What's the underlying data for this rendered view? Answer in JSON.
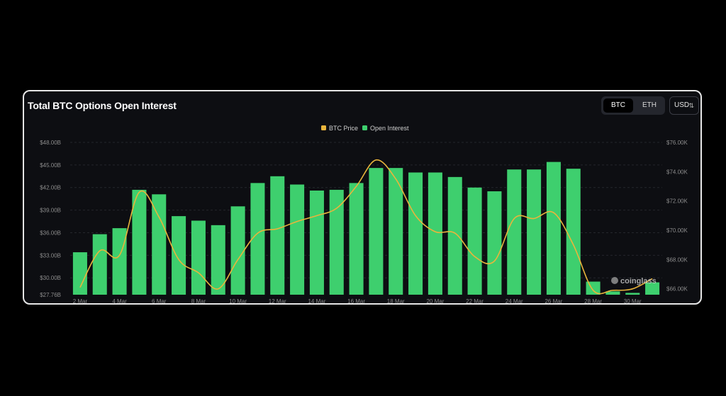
{
  "header": {
    "title": "Total BTC Options Open Interest"
  },
  "toggle": {
    "options": [
      "BTC",
      "ETH"
    ],
    "selected": "BTC"
  },
  "currency": {
    "value": "USD",
    "icon": "chevron-updown-icon"
  },
  "watermark": {
    "text": "coinglass",
    "icon": "coinglass-logo-icon"
  },
  "chart_data": {
    "type": "bar",
    "title": "Total BTC Options Open Interest",
    "legend": {
      "placement": "top-center",
      "entries": [
        "BTC Price",
        "Open Interest"
      ]
    },
    "colors": {
      "bar": "#3ecf6e",
      "line": "#e9b53c",
      "text": "#8c8c8c",
      "grid": "#24262c"
    },
    "x_ticks": [
      "2 Mar",
      "4 Mar",
      "6 Mar",
      "8 Mar",
      "10 Mar",
      "12 Mar",
      "14 Mar",
      "16 Mar",
      "18 Mar",
      "20 Mar",
      "22 Mar",
      "24 Mar",
      "26 Mar",
      "28 Mar",
      "30 Mar"
    ],
    "y_left": {
      "min": 27.76,
      "max": 48,
      "ticks": [
        "$48.00B",
        "$45.00B",
        "$42.00B",
        "$39.00B",
        "$36.00B",
        "$33.00B",
        "$30.00B",
        "$27.76B"
      ]
    },
    "y_right": {
      "min": 65.6,
      "max": 76,
      "ticks": [
        "$76.00K",
        "$74.00K",
        "$72.00K",
        "$70.00K",
        "$68.00K",
        "$66.00K"
      ]
    },
    "categories": [
      "2 Mar",
      "3 Mar",
      "4 Mar",
      "5 Mar",
      "6 Mar",
      "7 Mar",
      "8 Mar",
      "9 Mar",
      "10 Mar",
      "11 Mar",
      "12 Mar",
      "13 Mar",
      "14 Mar",
      "15 Mar",
      "16 Mar",
      "17 Mar",
      "18 Mar",
      "19 Mar",
      "20 Mar",
      "21 Mar",
      "22 Mar",
      "23 Mar",
      "24 Mar",
      "25 Mar",
      "26 Mar",
      "27 Mar",
      "28 Mar",
      "29 Mar",
      "30 Mar",
      "31 Mar"
    ],
    "series": [
      {
        "name": "Open Interest",
        "type": "bar",
        "axis": "left",
        "values": [
          33.4,
          35.8,
          36.6,
          41.7,
          41.1,
          38.2,
          37.6,
          37.0,
          39.5,
          42.6,
          43.5,
          42.4,
          41.6,
          41.7,
          42.6,
          44.6,
          44.6,
          44.0,
          44.0,
          43.4,
          42.0,
          41.5,
          44.4,
          44.4,
          45.4,
          44.5,
          29.5,
          28.2,
          28.0,
          29.4
        ]
      },
      {
        "name": "BTC Price",
        "type": "line",
        "axis": "right",
        "values": [
          66.1,
          68.6,
          68.3,
          72.6,
          70.9,
          68.0,
          67.1,
          66.0,
          68.0,
          69.8,
          70.1,
          70.6,
          71.0,
          71.5,
          73.0,
          74.8,
          73.5,
          71.0,
          69.9,
          69.8,
          68.2,
          67.9,
          70.8,
          70.8,
          71.2,
          69.0,
          65.9,
          65.9,
          66.0,
          66.7
        ]
      }
    ]
  }
}
